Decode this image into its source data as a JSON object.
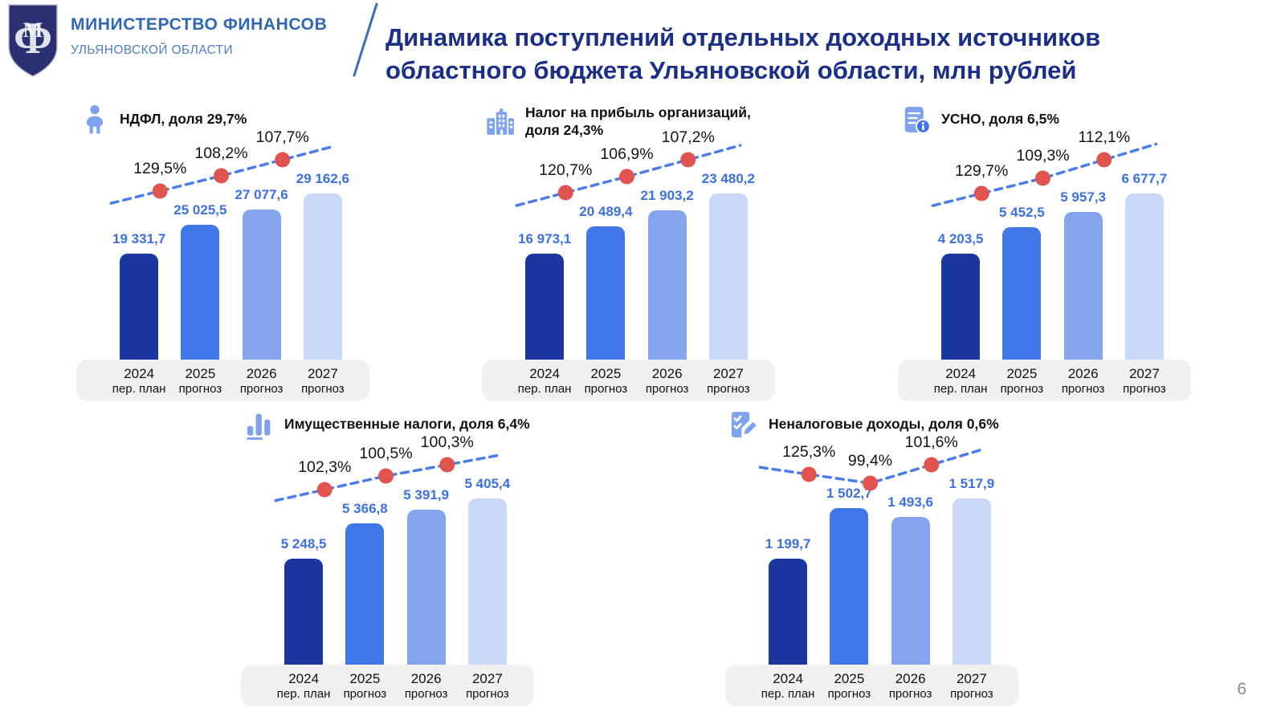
{
  "slide": {
    "org": {
      "line1": "МИНИСТЕРСТВО ФИНАНСОВ",
      "line2": "УЛЬЯНОВСКОЙ ОБЛАСТИ",
      "monogram": "Ф"
    },
    "title": "Динамика поступлений отдельных доходных источников областного бюджета Ульяновской области, млн рублей",
    "units": "млн рублей",
    "page_number": "6"
  },
  "categories": [
    {
      "year": "2024",
      "label": "пер. план"
    },
    {
      "year": "2025",
      "label": "прогноз"
    },
    {
      "year": "2026",
      "label": "прогноз"
    },
    {
      "year": "2027",
      "label": "прогноз"
    }
  ],
  "chart_data": [
    {
      "id": "ndfl",
      "type": "bar",
      "icon": "person-icon",
      "title": "НДФЛ, доля 29,7%",
      "share": "29,7%",
      "categories": [
        "2024 пер. план",
        "2025 прогноз",
        "2026 прогноз",
        "2027 прогноз"
      ],
      "values": [
        19331.7,
        25025.5,
        27077.6,
        29162.6
      ],
      "value_labels": [
        "19 331,7",
        "25 025,5",
        "27 077,6",
        "29 162,6"
      ],
      "growth_pcts": [
        "129,5%",
        "108,2%",
        "107,7%"
      ]
    },
    {
      "id": "profit-tax",
      "type": "bar",
      "icon": "buildings-icon",
      "title": "Налог на прибыль организаций, доля 24,3%",
      "share": "24,3%",
      "categories": [
        "2024 пер. план",
        "2025 прогноз",
        "2026 прогноз",
        "2027 прогноз"
      ],
      "values": [
        16973.1,
        20489.4,
        21903.2,
        23480.2
      ],
      "value_labels": [
        "16 973,1",
        "20 489,4",
        "21 903,2",
        "23 480,2"
      ],
      "growth_pcts": [
        "120,7%",
        "106,9%",
        "107,2%"
      ]
    },
    {
      "id": "usno",
      "type": "bar",
      "icon": "document-info-icon",
      "title": "УСНО, доля 6,5%",
      "share": "6,5%",
      "categories": [
        "2024 пер. план",
        "2025 прогноз",
        "2026 прогноз",
        "2027 прогноз"
      ],
      "values": [
        4203.5,
        5452.5,
        5957.3,
        6677.7
      ],
      "value_labels": [
        "4 203,5",
        "5 452,5",
        "5 957,3",
        "6 677,7"
      ],
      "growth_pcts": [
        "129,7%",
        "109,3%",
        "112,1%"
      ]
    },
    {
      "id": "property-taxes",
      "type": "bar",
      "icon": "bar-chart-icon",
      "title": "Имущественные налоги, доля 6,4%",
      "share": "6,4%",
      "categories": [
        "2024 пер. план",
        "2025 прогноз",
        "2026 прогноз",
        "2027 прогноз"
      ],
      "values": [
        5248.5,
        5366.8,
        5391.9,
        5405.4
      ],
      "value_labels": [
        "5 248,5",
        "5 366,8",
        "5 391,9",
        "5 405,4"
      ],
      "growth_pcts": [
        "102,3%",
        "100,5%",
        "100,3%"
      ]
    },
    {
      "id": "non-tax",
      "type": "bar",
      "icon": "checklist-pencil-icon",
      "title": "Неналоговые доходы, доля 0,6%",
      "share": "0,6%",
      "categories": [
        "2024 пер. план",
        "2025 прогноз",
        "2026 прогноз",
        "2027 прогноз"
      ],
      "values": [
        1199.7,
        1502.7,
        1493.6,
        1517.9
      ],
      "value_labels": [
        "1 199,7",
        "1 502,7",
        "1 493,6",
        "1 517,9"
      ],
      "growth_pcts": [
        "125,3%",
        "99,4%",
        "101,6%"
      ]
    }
  ],
  "colors": {
    "bar_palette": [
      "#1a379f",
      "#4076e8",
      "#84a4ee",
      "#c9d7f8"
    ],
    "value_label": "#3c70e2",
    "trend_line": "#4a7cec",
    "trend_marker": "#e0534f",
    "axis_pill_bg": "#f0f0f0",
    "title_navy": "#1b2f88",
    "org_blue": "#2f66b5",
    "org_blue_light": "#4e7fc0",
    "icon_blue": "#7fa2f0",
    "page_number_gray": "#8a8a8a",
    "logo_shield": "#2a3172"
  }
}
